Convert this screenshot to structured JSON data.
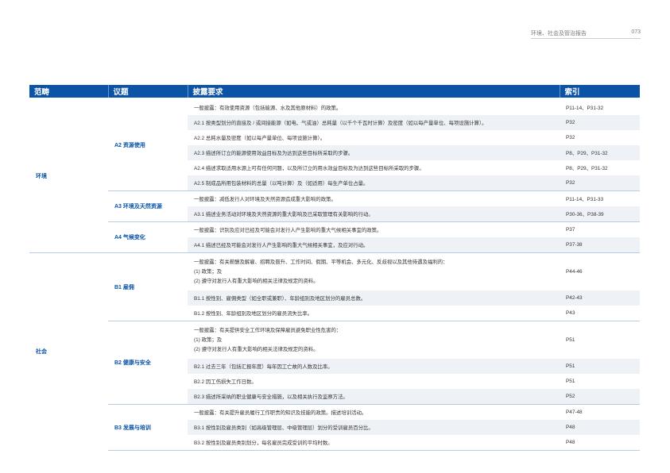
{
  "header": {
    "report_title": "环境、社会及管治报告",
    "page_number": "073"
  },
  "table": {
    "columns": [
      "范畴",
      "议题",
      "披露要求",
      "索引"
    ],
    "categories": [
      {
        "name": "环境",
        "topics": [
          {
            "name": "A2 资源使用",
            "rows": [
              {
                "lines": [
                  "一般披露：有效使用资源（包括能源、水及其他原材料）的政策。"
                ],
                "index": "P11-14、P31-32"
              },
              {
                "lines": [
                  "A2.1 按类型划分的直接及 / 或间接能源（如电、气或油）总耗量（以千个千瓦时计算）及密度（如以每产量单位、每项设施计算）。"
                ],
                "index": "P32"
              },
              {
                "lines": [
                  "A2.2 总耗水量及密度（如以每产量单位、每项设施计算）。"
                ],
                "index": "P32"
              },
              {
                "lines": [
                  "A2.3 描述所订立的能源使用效益目标及为达到这些目标所采取的步骤。"
                ],
                "index": "P8、P29、P31-32"
              },
              {
                "lines": [
                  "A2.4 描述求取适用水源上可有任何问题，以及所订立的用水效益目标及为达到这些目标所采取的步骤。"
                ],
                "index": "P8、P29、P31-32"
              },
              {
                "lines": [
                  "A2.5 制成品所用包装材料的总量（以吨计算）及（如适用）每生产单位占量。"
                ],
                "index": "P32"
              }
            ]
          },
          {
            "name": "A3 环境及天然资源",
            "rows": [
              {
                "lines": [
                  "一般披露：减低发行人对环境及天然资源造成重大影响的政策。"
                ],
                "index": "P11-14、P31-33"
              },
              {
                "lines": [
                  "A3.1 描述业务活动对环境及天然资源的重大影响及已采取管理有关影响的行动。"
                ],
                "index": "P30-36、P38-39"
              }
            ]
          },
          {
            "name": "A4 气候变化",
            "rows": [
              {
                "lines": [
                  "一般披露：识别及应对已经及可能会对发行人产生影响的重大气候相关事宜的政策。"
                ],
                "index": "P37"
              },
              {
                "lines": [
                  "A4.1 描述已经及可能会对发行人产生影响的重大气候相关事宜，及应对行动。"
                ],
                "index": "P37-38"
              }
            ]
          }
        ]
      },
      {
        "name": "社会",
        "topics": [
          {
            "name": "B1 雇佣",
            "rows": [
              {
                "lines": [
                  "一般披露：有关薪酬及解雇、招聘及晋升、工作时间、假期、平等机会、多元化、反歧视以及其他待遇及福利的：",
                  "(1) 政策；及",
                  "(2) 遵守对发行人有重大影响的相关法律及规定的资料。"
                ],
                "index": "P44-46"
              },
              {
                "lines": [
                  "B1.1 按性别、雇佣类型（如全职或兼职）、年龄组别及地区划分的雇员总数。"
                ],
                "index": "P42-43"
              },
              {
                "lines": [
                  "B1.2 按性别、年龄组别及地区划分的雇员流失比率。"
                ],
                "index": "P43"
              }
            ]
          },
          {
            "name": "B2 健康与安全",
            "rows": [
              {
                "lines": [
                  "一般披露：有关提供安全工作环境及保障雇员避免职业性危害的：",
                  "(1) 政策；及",
                  "(2) 遵守对发行人有重大影响的相关法律及规定的资料。"
                ],
                "index": "P51"
              },
              {
                "lines": [
                  "B2.1 过去三年（包括汇报年度）每年因工亡故的人数及比率。"
                ],
                "index": "P51"
              },
              {
                "lines": [
                  "B2.2 因工伤损失工作日数。"
                ],
                "index": "P51"
              },
              {
                "lines": [
                  "B2.3 描述所采纳的职业健康与安全措施，以及相关执行及监察方法。"
                ],
                "index": "P52"
              }
            ]
          },
          {
            "name": "B3 发展与培训",
            "rows": [
              {
                "lines": [
                  "一般披露：有关提升雇员履行工作职责的知识及技能的政策。描述培训活动。"
                ],
                "index": "P47-48"
              },
              {
                "lines": [
                  "B3.1 按性别及雇员类别（如高级管理层、中级管理层）划分的受训雇员百分比。"
                ],
                "index": "P48"
              },
              {
                "lines": [
                  "B3.2 按性别及雇员类别划分，每名雇员完成受训的平均时数。"
                ],
                "index": "P48"
              }
            ]
          }
        ]
      }
    ]
  }
}
